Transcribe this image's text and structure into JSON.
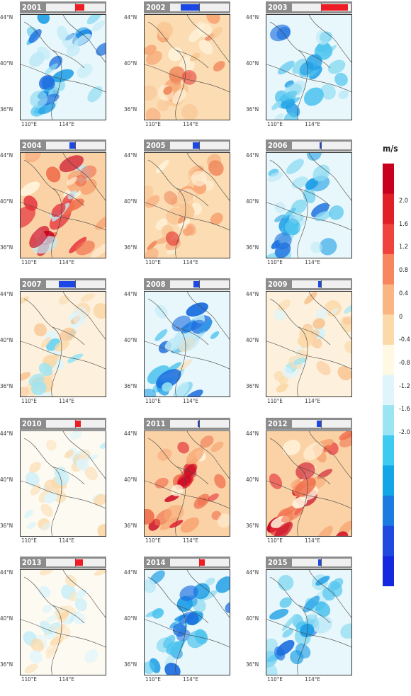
{
  "colorbar": {
    "unit": "m/s",
    "tick_labels": [
      "2.0",
      "1.6",
      "1.2",
      "0.8",
      "0.4",
      "0",
      "-0.4",
      "-0.8",
      "-1.2",
      "-1.6",
      "-2.0"
    ],
    "colors": [
      "#c8001e",
      "#e11f26",
      "#f0433d",
      "#f7855e",
      "#f9b683",
      "#fbd9a8",
      "#fff9e3",
      "#dff5fb",
      "#9be4f4",
      "#3fcbef",
      "#12a6e6",
      "#1c7be0",
      "#1f4ae0",
      "#1428e0"
    ]
  },
  "axis_labels": {
    "lat": [
      "44°N",
      "40°N",
      "36°N"
    ],
    "lon": [
      "110°E",
      "114°E"
    ]
  },
  "chart_data": {
    "type": "heatmap",
    "description_free": true,
    "panels": [
      {
        "year": "2001",
        "bar_value": 0.3,
        "tone": "blue",
        "intensity": 0.7
      },
      {
        "year": "2002",
        "bar_value": -0.62,
        "tone": "warm",
        "intensity": 0.4
      },
      {
        "year": "2003",
        "bar_value": 0.9,
        "tone": "blue",
        "intensity": 0.6
      },
      {
        "year": "2004",
        "bar_value": -0.2,
        "tone": "red",
        "intensity": 0.9
      },
      {
        "year": "2005",
        "bar_value": -0.22,
        "tone": "warm",
        "intensity": 0.5
      },
      {
        "year": "2006",
        "bar_value": -0.05,
        "tone": "blue",
        "intensity": 0.6
      },
      {
        "year": "2007",
        "bar_value": -0.55,
        "tone": "warmlight",
        "intensity": 0.4
      },
      {
        "year": "2008",
        "bar_value": -0.18,
        "tone": "blue",
        "intensity": 0.9
      },
      {
        "year": "2009",
        "bar_value": -0.1,
        "tone": "warmlight",
        "intensity": 0.35
      },
      {
        "year": "2010",
        "bar_value": 0.2,
        "tone": "pale",
        "intensity": 0.25
      },
      {
        "year": "2011",
        "bar_value": -0.04,
        "tone": "red",
        "intensity": 0.6
      },
      {
        "year": "2012",
        "bar_value": -0.14,
        "tone": "red",
        "intensity": 0.8
      },
      {
        "year": "2013",
        "bar_value": 0.26,
        "tone": "pale",
        "intensity": 0.3
      },
      {
        "year": "2014",
        "bar_value": 0.18,
        "tone": "blue",
        "intensity": 0.5
      },
      {
        "year": "2015",
        "bar_value": -0.1,
        "tone": "blue",
        "intensity": 0.6
      }
    ]
  }
}
